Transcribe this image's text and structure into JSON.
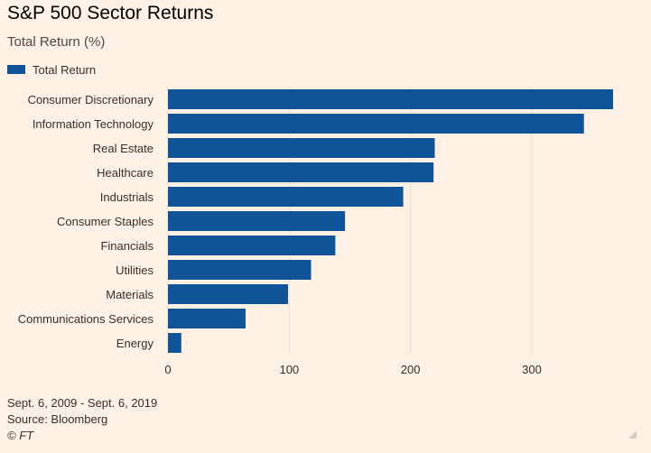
{
  "title": "S&P 500 Sector Returns",
  "subtitle": "Total Return (%)",
  "legend": {
    "label": "Total Return",
    "color": "#0f5499"
  },
  "footer": {
    "date_range": "Sept. 6, 2009 - Sept. 6, 2019",
    "source": "Source: Bloomberg",
    "credit": "© FT"
  },
  "colors": {
    "background": "#fff1e5",
    "bar": "#0f5499",
    "grid": "#e9ded3",
    "text": "#33302e"
  },
  "chart_data": {
    "type": "bar",
    "orientation": "horizontal",
    "title": "S&P 500 Sector Returns",
    "subtitle": "Total Return (%)",
    "categories": [
      "Consumer Discretionary",
      "Information Technology",
      "Real Estate",
      "Healthcare",
      "Industrials",
      "Consumer Staples",
      "Financials",
      "Utilities",
      "Materials",
      "Communications Services",
      "Energy"
    ],
    "series": [
      {
        "name": "Total Return",
        "values": [
          367,
          343,
          220,
          219,
          194,
          146,
          138,
          118,
          99,
          64,
          11
        ]
      }
    ],
    "xlim": [
      0,
      370
    ],
    "xticks": [
      0,
      100,
      200,
      300
    ],
    "grid": true,
    "legend_position": "top-left"
  }
}
